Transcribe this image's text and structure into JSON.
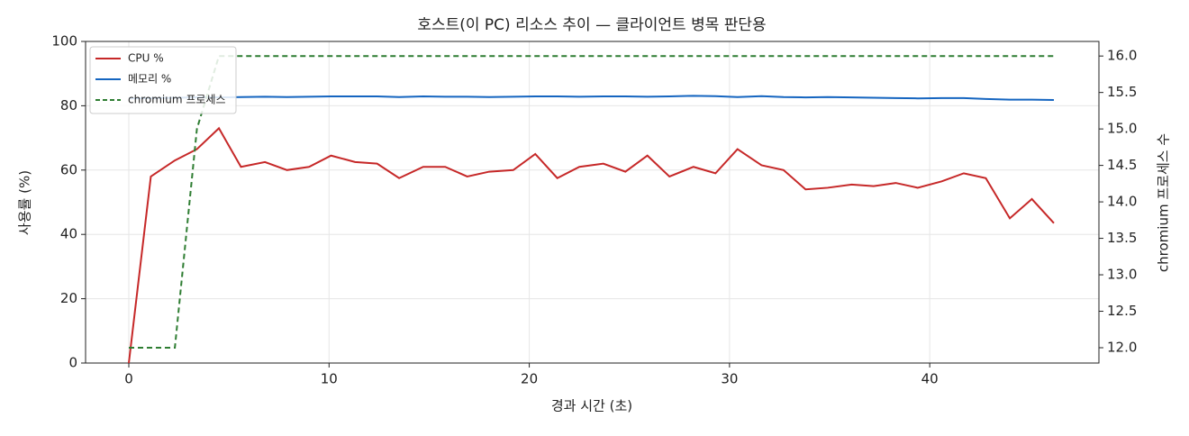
{
  "chart_data": {
    "type": "line",
    "title": "호스트(이 PC) 리소스 추이 — 클라이언트 병목 판단용",
    "x_label": "경과 시간 (초)",
    "y_label": "사용률 (%)",
    "y2_label": "chromium 프로세스 수",
    "x": [
      0,
      1.1,
      2.3,
      3.4,
      4.5,
      5.6,
      6.8,
      7.9,
      9.0,
      10.1,
      11.3,
      12.4,
      13.5,
      14.7,
      15.8,
      16.9,
      18.0,
      19.2,
      20.3,
      21.4,
      22.5,
      23.7,
      24.8,
      25.9,
      27.0,
      28.2,
      29.3,
      30.4,
      31.6,
      32.7,
      33.8,
      34.9,
      36.1,
      37.2,
      38.3,
      39.4,
      40.6,
      41.7,
      42.8,
      44.0,
      45.1,
      46.2
    ],
    "series": [
      {
        "name": "CPU %",
        "color": "#c62828",
        "dashed": false,
        "values": [
          0,
          58,
          63,
          66.5,
          73,
          61,
          62.5,
          60,
          61,
          64.5,
          62.5,
          62,
          57.5,
          61,
          61,
          58,
          59.5,
          60,
          65,
          57.5,
          61,
          62,
          59.5,
          64.5,
          58,
          61,
          59,
          66.5,
          61.5,
          60,
          54,
          54.5,
          55.5,
          55,
          56,
          54.5,
          56.5,
          59,
          57.5,
          45,
          51,
          43.5
        ]
      },
      {
        "name": "메모리 %",
        "color": "#1565c0",
        "dashed": false,
        "values": [
          82.3,
          82.4,
          82.5,
          82.6,
          82.6,
          82.7,
          82.8,
          82.7,
          82.8,
          82.9,
          82.9,
          82.9,
          82.7,
          82.9,
          82.8,
          82.8,
          82.7,
          82.8,
          82.9,
          82.9,
          82.8,
          82.9,
          82.9,
          82.8,
          82.9,
          83.1,
          83.0,
          82.7,
          83.0,
          82.7,
          82.6,
          82.7,
          82.6,
          82.5,
          82.4,
          82.3,
          82.4,
          82.4,
          82.1,
          81.9,
          81.9,
          81.8
        ]
      },
      {
        "name": "chromium 프로세스",
        "color": "#2e7d32",
        "dashed": true,
        "axis": "y2",
        "values": [
          12,
          12,
          12,
          15,
          16,
          16,
          16,
          16,
          16,
          16,
          16,
          16,
          16,
          16,
          16,
          16,
          16,
          16,
          16,
          16,
          16,
          16,
          16,
          16,
          16,
          16,
          16,
          16,
          16,
          16,
          16,
          16,
          16,
          16,
          16,
          16,
          16,
          16,
          16,
          16,
          16,
          16
        ]
      }
    ],
    "xlim": [
      -2.16,
      48.45
    ],
    "xticks": [
      0,
      10,
      20,
      30,
      40
    ],
    "ylim": [
      0,
      100
    ],
    "yticks": [
      0,
      20,
      40,
      60,
      80,
      100
    ],
    "y2lim": [
      11.79,
      16.2
    ],
    "y2ticks": [
      {
        "value": 12,
        "label": "12.0"
      },
      {
        "value": 12.5,
        "label": "12.5"
      },
      {
        "value": 13,
        "label": "13.0"
      },
      {
        "value": 13.5,
        "label": "13.5"
      },
      {
        "value": 14,
        "label": "14.0"
      },
      {
        "value": 14.5,
        "label": "14.5"
      },
      {
        "value": 15,
        "label": "15.0"
      },
      {
        "value": 15.5,
        "label": "15.5"
      },
      {
        "value": 16,
        "label": "16.0"
      }
    ],
    "grid": true,
    "legend": "upper-left"
  }
}
